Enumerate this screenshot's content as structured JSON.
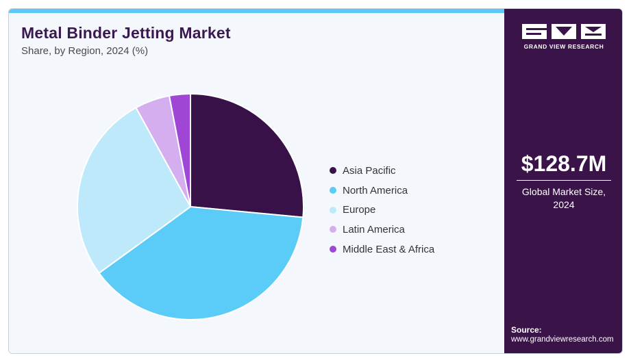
{
  "title": "Metal Binder Jetting Market",
  "subtitle": "Share, by Region, 2024 (%)",
  "chart_data": {
    "type": "pie",
    "title": "Metal Binder Jetting Market",
    "subtitle": "Share, by Region, 2024 (%)",
    "legend_position": "right",
    "start_angle": "12 o'clock, clockwise",
    "categories": [
      "Asia Pacific",
      "North America",
      "Europe",
      "Latin America",
      "Middle East & Africa"
    ],
    "values": [
      26.5,
      38.5,
      27.0,
      5.0,
      3.0
    ],
    "colors": [
      "#371148",
      "#5bcbf7",
      "#bde9fa",
      "#d5aef0",
      "#a046d6"
    ]
  },
  "sidebar": {
    "logo_text": "GRAND VIEW RESEARCH",
    "market_value": "$128.7M",
    "market_caption_line1": "Global Market Size,",
    "market_caption_line2": "2024",
    "source_label": "Source:",
    "source_url": "www.grandviewresearch.com"
  }
}
